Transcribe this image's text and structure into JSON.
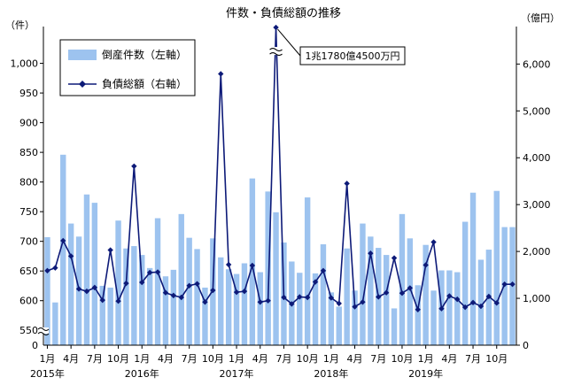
{
  "chart_data": {
    "type": "bar+line",
    "title": "件数・負債総額の推移",
    "y_left_unit": "（件）",
    "y_right_unit": "（億円）",
    "y_left_axis_bottom_label": "0",
    "y_left_ticks": [
      550,
      600,
      650,
      700,
      750,
      800,
      850,
      900,
      950,
      1000
    ],
    "y_left_tick_labels": [
      "550",
      "600",
      "650",
      "700",
      "750",
      "800",
      "850",
      "900",
      "950",
      "1,000"
    ],
    "y_left_range": [
      525,
      1062
    ],
    "y_right_ticks": [
      0,
      1000,
      2000,
      3000,
      4000,
      5000,
      6000
    ],
    "y_right_tick_labels": [
      "0",
      "1,000",
      "2,000",
      "3,000",
      "4,000",
      "5,000",
      "6,000"
    ],
    "y_right_range": [
      0,
      6800
    ],
    "x_tick_labels": [
      {
        "index": 0,
        "month": "1月",
        "year": "2015年"
      },
      {
        "index": 3,
        "month": "4月"
      },
      {
        "index": 6,
        "month": "7月"
      },
      {
        "index": 9,
        "month": "10月"
      },
      {
        "index": 12,
        "month": "1月",
        "year": "2016年"
      },
      {
        "index": 15,
        "month": "4月"
      },
      {
        "index": 18,
        "month": "7月"
      },
      {
        "index": 21,
        "month": "10月"
      },
      {
        "index": 24,
        "month": "1月",
        "year": "2017年"
      },
      {
        "index": 27,
        "month": "4月"
      },
      {
        "index": 30,
        "month": "7月"
      },
      {
        "index": 33,
        "month": "10月"
      },
      {
        "index": 36,
        "month": "1月",
        "year": "2018年"
      },
      {
        "index": 39,
        "month": "4月"
      },
      {
        "index": 42,
        "month": "7月"
      },
      {
        "index": 45,
        "month": "10月"
      },
      {
        "index": 48,
        "month": "1月",
        "year": "2019年"
      },
      {
        "index": 51,
        "month": "4月"
      },
      {
        "index": 54,
        "month": "7月"
      },
      {
        "index": 57,
        "month": "10月"
      }
    ],
    "series": [
      {
        "name": "倒産件数（左軸）",
        "axis": "left",
        "kind": "bar",
        "color": "#9dc3ef",
        "values": [
          707,
          597,
          846,
          730,
          708,
          779,
          765,
          625,
          622,
          735,
          688,
          692,
          677,
          655,
          739,
          641,
          652,
          746,
          706,
          687,
          622,
          705,
          673,
          653,
          645,
          663,
          806,
          648,
          784,
          749,
          698,
          666,
          647,
          774,
          646,
          695,
          614,
          590,
          688,
          617,
          730,
          708,
          689,
          677,
          587,
          746,
          705,
          626,
          694,
          617,
          651,
          651,
          648,
          733,
          782,
          669,
          686,
          785,
          724,
          724
        ]
      },
      {
        "name": "負債総額（右軸）",
        "axis": "right",
        "kind": "line",
        "color": "#0d1a78",
        "values": [
          1590,
          1650,
          2230,
          1900,
          1200,
          1150,
          1230,
          960,
          2030,
          940,
          1320,
          3820,
          1340,
          1550,
          1560,
          1120,
          1060,
          1020,
          1270,
          1310,
          920,
          1170,
          5790,
          1720,
          1130,
          1150,
          1700,
          920,
          950,
          6780,
          1020,
          880,
          1030,
          1020,
          1350,
          1590,
          1010,
          890,
          3450,
          820,
          920,
          1960,
          1030,
          1120,
          1860,
          1110,
          1220,
          760,
          1710,
          2200,
          780,
          1050,
          980,
          810,
          910,
          830,
          1040,
          900,
          1300,
          1300
        ]
      }
    ],
    "annotation": {
      "text": "1兆1780億4500万円",
      "series": "負債総額（右軸）",
      "point_index": 29
    },
    "axis_break": {
      "left_axis": true,
      "right_series_peak_index": 29
    },
    "legend": "top-left",
    "grid": false
  }
}
